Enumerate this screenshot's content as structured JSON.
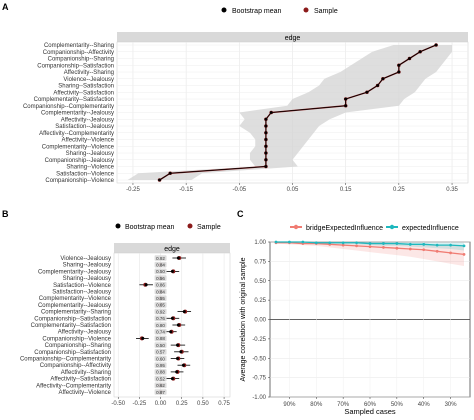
{
  "chart_data": [
    {
      "panel": "A",
      "type": "line",
      "strip": "edge",
      "legend": {
        "position": "top",
        "entries": [
          "Bootstrap mean",
          "Sample"
        ]
      },
      "colors": {
        "bootstrap_mean": "#000000",
        "sample": "#8b1a1a",
        "band": "#d3d3d3"
      },
      "categories": [
        "Complementarity--Sharing",
        "Companionship--Affectivity",
        "Companionship--Sharing",
        "Companionship--Satisfaction",
        "Affectivity--Sharing",
        "Violence--Jealousy",
        "Sharing--Satisfaction",
        "Affectivity--Satisfaction",
        "Complementarity--Satisfaction",
        "Companionship--Complementarity",
        "Complementarity--Jealousy",
        "Affectivity--Jealousy",
        "Satisfaction--Jealousy",
        "Affectivity--Complementarity",
        "Affectivity--Violence",
        "Complementarity--Violence",
        "Sharing--Jealousy",
        "Companionship--Jealousy",
        "Sharing--Violence",
        "Satisfaction--Violence",
        "Companionship--Violence"
      ],
      "series": [
        {
          "name": "Sample",
          "values": [
            0.32,
            0.29,
            0.27,
            0.25,
            0.25,
            0.22,
            0.21,
            0.19,
            0.15,
            0.15,
            0.01,
            0.0,
            0.0,
            0.0,
            0.0,
            0.0,
            0.0,
            0.0,
            0.0,
            -0.18,
            -0.2
          ]
        },
        {
          "name": "Bootstrap mean",
          "values": [
            0.32,
            0.29,
            0.27,
            0.25,
            0.25,
            0.22,
            0.21,
            0.19,
            0.15,
            0.15,
            0.01,
            0.0,
            0.0,
            0.0,
            0.0,
            0.0,
            0.0,
            0.0,
            0.0,
            -0.18,
            -0.2
          ]
        }
      ],
      "ci_lower": [
        0.24,
        0.2,
        0.18,
        0.16,
        0.14,
        0.11,
        0.1,
        0.08,
        0.05,
        0.04,
        -0.05,
        -0.04,
        -0.05,
        -0.03,
        -0.02,
        -0.02,
        -0.03,
        -0.03,
        -0.02,
        -0.24,
        -0.26
      ],
      "ci_upper": [
        0.35,
        0.35,
        0.34,
        0.33,
        0.32,
        0.3,
        0.29,
        0.28,
        0.26,
        0.25,
        0.15,
        0.12,
        0.1,
        0.09,
        0.08,
        0.07,
        0.06,
        0.05,
        0.06,
        -0.12,
        -0.14
      ],
      "xticks": [
        "-0.25",
        "-0.15",
        "-0.05",
        "0.05",
        "0.15",
        "0.25",
        "0.35"
      ],
      "xlim": [
        -0.28,
        0.38
      ],
      "grid": true
    },
    {
      "panel": "B",
      "type": "scatter",
      "strip": "edge",
      "legend": {
        "position": "top",
        "entries": [
          "Bootstrap mean",
          "Sample"
        ]
      },
      "colors": {
        "bootstrap_mean": "#000000",
        "sample": "#8b1a1a",
        "label_box": "#d9d9d9"
      },
      "categories": [
        "Violence--Jealousy",
        "Sharing--Jealousy",
        "Complementarity--Jealousy",
        "Sharing--Jealousy",
        "Satisfaction--Violence",
        "Satisfaction--Jealousy",
        "Complementarity--Violence",
        "Complementarity--Jealousy",
        "Complementarity--Sharing",
        "Companionship--Satisfaction",
        "Complementarity--Satisfaction",
        "Affectivity--Jealousy",
        "Companionship--Violence",
        "Companionship--Sharing",
        "Companionship--Satisfaction",
        "Companionship--Complementarity",
        "Companionship--Affectivity",
        "Affectivity--Sharing",
        "Affectivity--Satisfaction",
        "Affectivity--Complementarity",
        "Affectivity--Violence"
      ],
      "inclusion_labels": [
        "0.92",
        "0.84",
        "0.50",
        "0.56",
        "0.86",
        "0.84",
        "0.55",
        "0.65",
        "0.92",
        "0.76",
        "0.80",
        "0.74",
        "0.88",
        "0.50",
        "0.57",
        "0.60",
        "0.95",
        "0.88",
        "0.52",
        "0.62",
        "0.87"
      ],
      "series": [
        {
          "name": "Sample",
          "values": [
            0.22,
            0.0,
            0.15,
            0.0,
            -0.18,
            0.0,
            0.0,
            0.0,
            0.29,
            0.15,
            0.22,
            0.13,
            -0.22,
            0.21,
            0.25,
            0.21,
            0.28,
            0.2,
            0.15,
            0.0,
            0.0
          ]
        },
        {
          "name": "Bootstrap mean",
          "values": [
            0.21,
            0.01,
            0.14,
            0.0,
            -0.17,
            0.0,
            0.0,
            0.0,
            0.28,
            0.14,
            0.21,
            0.12,
            -0.21,
            0.2,
            0.24,
            0.2,
            0.27,
            0.19,
            0.14,
            0.0,
            0.0
          ]
        }
      ],
      "ci_lower": [
        0.14,
        -0.04,
        0.07,
        -0.03,
        -0.25,
        -0.03,
        -0.03,
        -0.03,
        0.2,
        0.07,
        0.14,
        0.05,
        -0.29,
        0.12,
        0.16,
        0.12,
        0.2,
        0.12,
        0.07,
        -0.03,
        -0.03
      ],
      "ci_upper": [
        0.3,
        0.06,
        0.22,
        0.03,
        -0.09,
        0.03,
        0.03,
        0.03,
        0.36,
        0.22,
        0.29,
        0.19,
        -0.14,
        0.29,
        0.33,
        0.28,
        0.35,
        0.27,
        0.22,
        0.03,
        0.03
      ],
      "xticks": [
        "-0.50",
        "-0.25",
        "0.00",
        "0.25",
        "0.50",
        "0.75"
      ],
      "xlim": [
        -0.55,
        0.82
      ],
      "grid": true
    },
    {
      "panel": "C",
      "type": "line",
      "legend": {
        "position": "top",
        "entries": [
          "bridgeExpectedInfluence",
          "expectedInfluence"
        ]
      },
      "colors": {
        "bridgeExpectedInfluence": "#f07c73",
        "expectedInfluence": "#1fb8be"
      },
      "xlabel": "Sampled cases",
      "ylabel": "Average correlation with original sample",
      "x": [
        "95%",
        "90%",
        "85%",
        "80%",
        "75%",
        "70%",
        "65%",
        "60%",
        "55%",
        "50%",
        "45%",
        "40%",
        "35%",
        "30%",
        "25%"
      ],
      "xticks": [
        "90%",
        "80%",
        "70%",
        "60%",
        "50%",
        "40%",
        "30%"
      ],
      "yticks": [
        "1.00",
        "0.75",
        "0.50",
        "0.25",
        "0.00",
        "-0.25",
        "-0.50",
        "-0.75",
        "-1.00"
      ],
      "ylim": [
        -1.0,
        1.0
      ],
      "series": [
        {
          "name": "bridgeExpectedInfluence",
          "values": [
            0.99,
            0.99,
            0.98,
            0.98,
            0.97,
            0.96,
            0.95,
            0.94,
            0.93,
            0.92,
            0.91,
            0.9,
            0.88,
            0.86,
            0.84
          ],
          "lower": [
            0.98,
            0.97,
            0.96,
            0.95,
            0.93,
            0.91,
            0.89,
            0.87,
            0.85,
            0.83,
            0.81,
            0.78,
            0.75,
            0.72,
            0.69
          ],
          "upper": [
            1.0,
            1.0,
            1.0,
            1.0,
            1.0,
            1.0,
            0.99,
            0.99,
            0.99,
            0.98,
            0.98,
            0.98,
            0.97,
            0.97,
            0.96
          ]
        },
        {
          "name": "expectedInfluence",
          "values": [
            1.0,
            1.0,
            1.0,
            0.99,
            0.99,
            0.99,
            0.99,
            0.98,
            0.98,
            0.98,
            0.97,
            0.97,
            0.96,
            0.96,
            0.95
          ],
          "lower": [
            0.99,
            0.99,
            0.99,
            0.98,
            0.98,
            0.97,
            0.97,
            0.96,
            0.95,
            0.95,
            0.94,
            0.93,
            0.92,
            0.91,
            0.89
          ],
          "upper": [
            1.0,
            1.0,
            1.0,
            1.0,
            1.0,
            1.0,
            1.0,
            1.0,
            1.0,
            1.0,
            0.99,
            0.99,
            0.99,
            0.99,
            0.99
          ]
        }
      ],
      "grid": true
    }
  ]
}
